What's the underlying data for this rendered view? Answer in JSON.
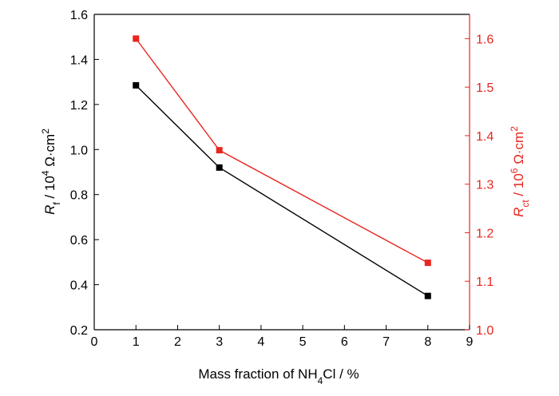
{
  "chart_data": {
    "type": "line",
    "xlabel": {
      "prefix": "Mass fraction of NH",
      "sub": "4",
      "suffix": "Cl / %"
    },
    "ylabel_left": {
      "sym": "R",
      "sub": "f",
      "mid": " / 10",
      "sup": "4",
      "unit": " Ω·cm",
      "sup2": "2"
    },
    "ylabel_right": {
      "sym": "R",
      "sub": "ct",
      "mid": " / 10",
      "sup": "6",
      "unit": " Ω·cm",
      "sup2": "2"
    },
    "xlim": [
      0,
      9
    ],
    "ylim_left": [
      0.2,
      1.6
    ],
    "ylim_right": [
      1.0,
      1.65
    ],
    "x_ticks": [
      "0",
      "1",
      "2",
      "3",
      "4",
      "5",
      "6",
      "7",
      "8",
      "9"
    ],
    "y_left_ticks": [
      "0.2",
      "0.4",
      "0.6",
      "0.8",
      "1.0",
      "1.2",
      "1.4",
      "1.6"
    ],
    "y_right_ticks": [
      "1.0",
      "1.1",
      "1.2",
      "1.3",
      "1.4",
      "1.5",
      "1.6"
    ],
    "series": [
      {
        "axis": "left",
        "color": "#000000",
        "x": [
          1,
          3,
          8
        ],
        "y": [
          1.285,
          0.92,
          0.35
        ]
      },
      {
        "axis": "right",
        "color": "#e8261f",
        "x": [
          1,
          3,
          8
        ],
        "y": [
          1.6,
          1.37,
          1.138
        ]
      }
    ],
    "right_axis_color": "#e8261f",
    "grid": false
  }
}
